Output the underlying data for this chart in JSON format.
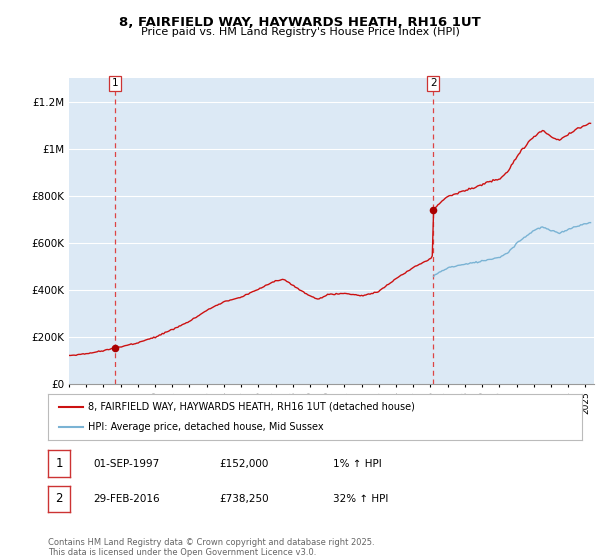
{
  "title": "8, FAIRFIELD WAY, HAYWARDS HEATH, RH16 1UT",
  "subtitle": "Price paid vs. HM Land Registry's House Price Index (HPI)",
  "ylim": [
    0,
    1300000
  ],
  "xlim_start": 1995.0,
  "xlim_end": 2025.5,
  "hpi_color": "#7ab3d4",
  "price_color": "#cc1111",
  "dashed_color": "#dd4444",
  "marker_color": "#aa0000",
  "background_color": "#ffffff",
  "chart_bg_color": "#dce9f5",
  "grid_color": "#ffffff",
  "sale1_year": 1997.667,
  "sale1_price": 152000,
  "sale2_year": 2016.167,
  "sale2_price": 738250,
  "legend_line1": "8, FAIRFIELD WAY, HAYWARDS HEATH, RH16 1UT (detached house)",
  "legend_line2": "HPI: Average price, detached house, Mid Sussex",
  "table_row1": [
    "1",
    "01-SEP-1997",
    "£152,000",
    "1% ↑ HPI"
  ],
  "table_row2": [
    "2",
    "29-FEB-2016",
    "£738,250",
    "32% ↑ HPI"
  ],
  "footnote": "Contains HM Land Registry data © Crown copyright and database right 2025.\nThis data is licensed under the Open Government Licence v3.0.",
  "ytick_labels": [
    "£0",
    "£200K",
    "£400K",
    "£600K",
    "£800K",
    "£1M",
    "£1.2M"
  ],
  "ytick_values": [
    0,
    200000,
    400000,
    600000,
    800000,
    1000000,
    1200000
  ]
}
